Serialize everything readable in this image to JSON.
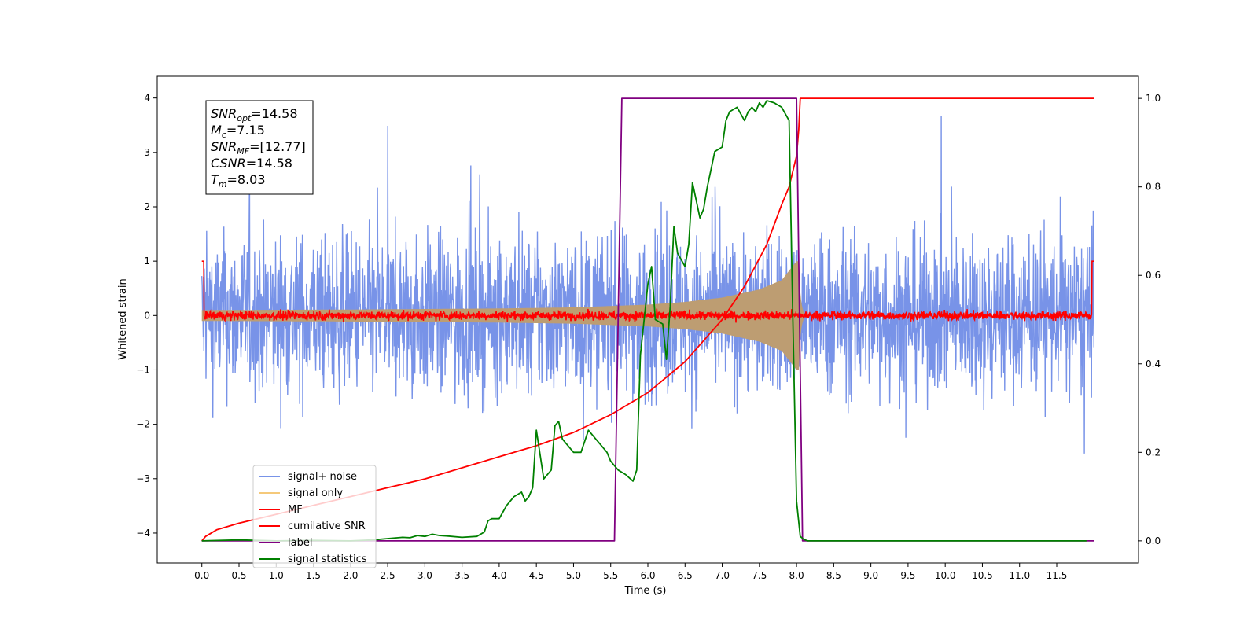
{
  "chart_data": {
    "type": "line",
    "xlabel": "Time (s)",
    "ylabel": "Whitened strain",
    "xlim": [
      -0.6,
      12.6
    ],
    "ylim": [
      -4.55,
      4.4
    ],
    "ylim_right": [
      -0.05,
      1.05
    ],
    "x_ticks": [
      "0.0",
      "0.5",
      "1.0",
      "1.5",
      "2.0",
      "2.5",
      "3.0",
      "3.5",
      "4.0",
      "4.5",
      "5.0",
      "5.5",
      "6.0",
      "6.5",
      "7.0",
      "7.5",
      "8.0",
      "8.5",
      "9.0",
      "9.5",
      "10.0",
      "10.5",
      "11.0",
      "11.5"
    ],
    "y_ticks_left": [
      "4",
      "3",
      "2",
      "1",
      "0",
      "−1",
      "−2",
      "−3",
      "−4"
    ],
    "y_ticks_right": [
      "1.0",
      "0.8",
      "0.6",
      "0.4",
      "0.2",
      "0.0"
    ],
    "grid": false,
    "legend_position": "lower-left",
    "info_box": {
      "lines": [
        {
          "main": "SNR",
          "sub": "opt",
          "rest": "=14.58"
        },
        {
          "main": "M",
          "sub": "c",
          "rest": "=7.15"
        },
        {
          "main": "SNR",
          "sub": "MF",
          "rest": "=[12.77]"
        },
        {
          "main": "CSNR",
          "sub": "",
          "rest": "=14.58"
        },
        {
          "main": "T",
          "sub": "m",
          "rest": "=8.03"
        }
      ]
    },
    "series": [
      {
        "name": "signal+ noise",
        "color": "#7893e8",
        "axis": "left",
        "style": "noise",
        "x_range": [
          0,
          12
        ],
        "amplitude_approx": 3.2
      },
      {
        "name": "signal only",
        "color": "#f5c97a",
        "fill_color": "#bd9d72",
        "axis": "left",
        "style": "chirp",
        "t_merge": 8.03,
        "envelope_points": [
          [
            0.0,
            0.1
          ],
          [
            2.0,
            0.11
          ],
          [
            4.0,
            0.13
          ],
          [
            5.0,
            0.15
          ],
          [
            6.0,
            0.2
          ],
          [
            6.5,
            0.25
          ],
          [
            7.0,
            0.33
          ],
          [
            7.5,
            0.48
          ],
          [
            7.8,
            0.65
          ],
          [
            8.0,
            1.0
          ]
        ],
        "ringdown_end": 8.1
      },
      {
        "name": "MF",
        "color": "#ff0000",
        "axis": "left",
        "style": "noise",
        "x_range": [
          0,
          12
        ],
        "amplitude_approx": 0.15
      },
      {
        "name": "cumilative SNR",
        "color": "#ff0000",
        "axis": "right",
        "x": [
          0.0,
          0.05,
          0.2,
          0.5,
          1.0,
          1.5,
          2.0,
          2.5,
          3.0,
          3.5,
          4.0,
          4.5,
          5.0,
          5.5,
          6.0,
          6.5,
          7.0,
          7.3,
          7.6,
          7.8,
          7.9,
          8.0,
          8.03
        ],
        "values": [
          0.0,
          0.01,
          0.025,
          0.04,
          0.06,
          0.08,
          0.1,
          0.12,
          0.14,
          0.165,
          0.19,
          0.215,
          0.245,
          0.285,
          0.335,
          0.405,
          0.5,
          0.575,
          0.67,
          0.76,
          0.8,
          0.87,
          0.93
        ]
      },
      {
        "name": "label",
        "color": "#800080",
        "axis": "right",
        "x": [
          0.0,
          5.55,
          5.65,
          8.0,
          8.08,
          8.1,
          12.0
        ],
        "values": [
          0,
          0,
          1,
          1,
          0,
          0,
          0
        ]
      },
      {
        "name": "signal statistics",
        "color": "#008000",
        "axis": "right",
        "x": [
          0.0,
          0.5,
          1.0,
          1.5,
          2.0,
          2.3,
          2.5,
          2.7,
          2.8,
          2.9,
          3.0,
          3.1,
          3.2,
          3.3,
          3.5,
          3.7,
          3.8,
          3.85,
          3.9,
          4.0,
          4.1,
          4.2,
          4.3,
          4.35,
          4.4,
          4.45,
          4.5,
          4.6,
          4.7,
          4.75,
          4.8,
          4.85,
          4.9,
          5.0,
          5.05,
          5.1,
          5.2,
          5.3,
          5.4,
          5.45,
          5.5,
          5.6,
          5.7,
          5.8,
          5.85,
          5.9,
          6.0,
          6.05,
          6.1,
          6.2,
          6.25,
          6.3,
          6.35,
          6.4,
          6.5,
          6.55,
          6.6,
          6.7,
          6.75,
          6.8,
          6.85,
          6.9,
          7.0,
          7.05,
          7.1,
          7.2,
          7.3,
          7.35,
          7.4,
          7.45,
          7.5,
          7.55,
          7.6,
          7.7,
          7.75,
          7.8,
          7.9,
          7.95,
          8.0,
          8.05,
          8.1,
          8.15,
          8.2,
          8.3,
          8.5,
          9.0,
          10.0,
          11.0,
          11.0,
          11.9
        ],
        "values": [
          0.0,
          0.002,
          0.0,
          0.001,
          0.0,
          0.002,
          0.005,
          0.008,
          0.007,
          0.012,
          0.01,
          0.015,
          0.012,
          0.011,
          0.008,
          0.01,
          0.02,
          0.045,
          0.05,
          0.05,
          0.08,
          0.1,
          0.11,
          0.09,
          0.1,
          0.12,
          0.25,
          0.14,
          0.16,
          0.26,
          0.27,
          0.23,
          0.22,
          0.2,
          0.2,
          0.2,
          0.25,
          0.23,
          0.21,
          0.2,
          0.18,
          0.16,
          0.15,
          0.135,
          0.16,
          0.42,
          0.58,
          0.62,
          0.5,
          0.49,
          0.41,
          0.53,
          0.71,
          0.65,
          0.62,
          0.67,
          0.81,
          0.73,
          0.75,
          0.8,
          0.84,
          0.88,
          0.89,
          0.95,
          0.97,
          0.98,
          0.95,
          0.97,
          0.98,
          0.97,
          0.99,
          0.98,
          0.995,
          0.99,
          0.985,
          0.98,
          0.95,
          0.5,
          0.09,
          0.01,
          0.003,
          0.0,
          0.0,
          0.0,
          0.0,
          0.0,
          0.0,
          0.0,
          0.0,
          0.0
        ]
      }
    ]
  }
}
